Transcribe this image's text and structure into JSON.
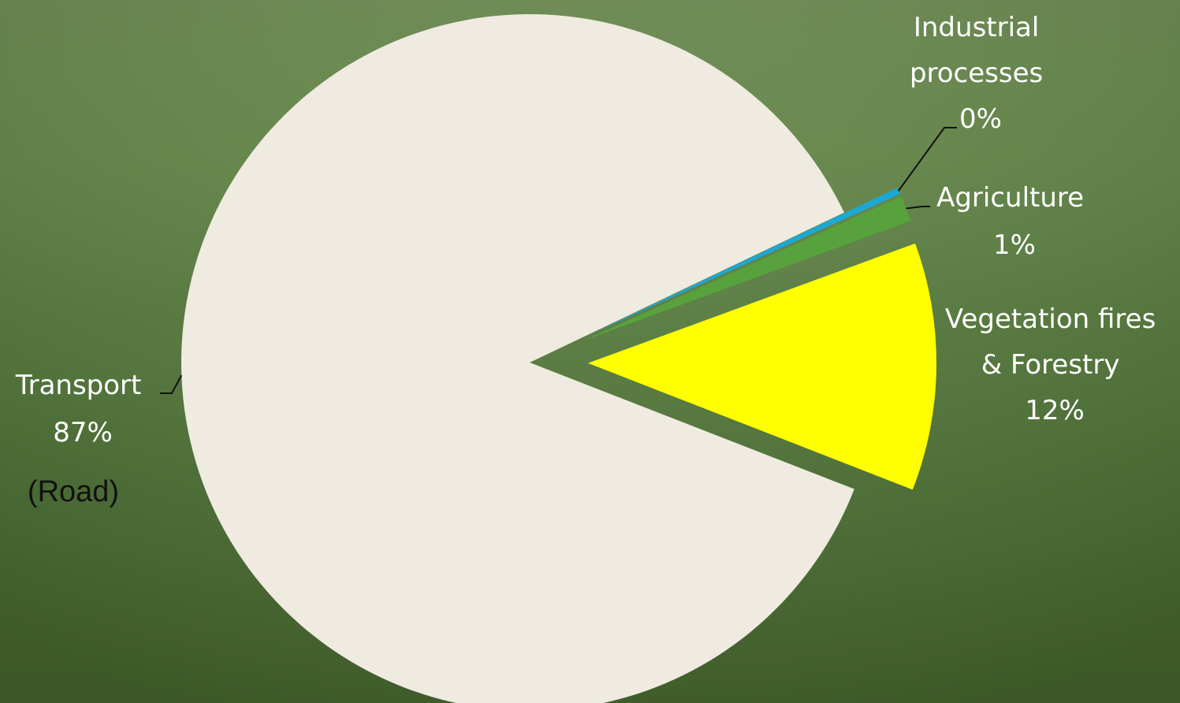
{
  "chart_data": {
    "type": "pie",
    "title": "",
    "slices": [
      {
        "label": "Industrial processes",
        "pct_label": "0%",
        "value": 0.3,
        "color": "#1aa9d6"
      },
      {
        "label": "Agriculture",
        "pct_label": "1%",
        "value": 1.2,
        "color": "#58a23d"
      },
      {
        "label": "Vegetation fires & Forestry",
        "pct_label": "12%",
        "value": 11.5,
        "color": "#ffff00"
      },
      {
        "label": "Transport",
        "pct_label": "87%",
        "value": 87.0,
        "color": "#efebe0"
      }
    ],
    "label_lines": {
      "industrial": [
        "Industrial",
        "processes",
        "0%"
      ],
      "agriculture": [
        "Agriculture",
        "1%"
      ],
      "vegetation": [
        "Vegetation fires",
        "& Forestry",
        "12%"
      ],
      "transport": [
        "Transport",
        "87%"
      ]
    },
    "annotation": "(Road)",
    "background_color": "#557a3c",
    "leader_line_color": "#111111"
  }
}
